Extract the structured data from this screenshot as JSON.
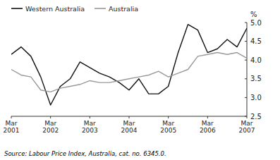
{
  "chart_data": {
    "type": "line",
    "y_label": "%",
    "annotations": [
      "Source: Labour Price Index, Australia, cat. no. 6345.0."
    ],
    "categories": [
      "Mar\n2001",
      null,
      null,
      null,
      "Mar\n2002",
      null,
      null,
      null,
      "Mar\n2003",
      null,
      null,
      null,
      "Mar\n2004",
      null,
      null,
      null,
      "Mar\n2005",
      null,
      null,
      null,
      "Mar\n2006",
      null,
      null,
      null,
      "Mar\n2007"
    ],
    "series": [
      {
        "name": "Western Australia",
        "color": "#111111",
        "values": [
          4.15,
          4.35,
          4.1,
          3.55,
          2.8,
          3.3,
          3.5,
          3.95,
          3.8,
          3.65,
          3.55,
          3.4,
          3.2,
          3.5,
          3.1,
          3.1,
          3.3,
          4.2,
          4.95,
          4.8,
          4.2,
          4.3,
          4.55,
          4.35,
          4.85
        ]
      },
      {
        "name": "Australia",
        "color": "#999999",
        "values": [
          3.75,
          3.6,
          3.55,
          3.2,
          3.15,
          3.25,
          3.3,
          3.35,
          3.45,
          3.4,
          3.4,
          3.45,
          3.5,
          3.55,
          3.6,
          3.7,
          3.55,
          3.65,
          3.75,
          4.1,
          4.15,
          4.2,
          4.15,
          4.2,
          4.05
        ]
      }
    ],
    "ylim": [
      2.5,
      5.0
    ],
    "yticks": [
      2.5,
      {
        "value": 3,
        "label": "3.0"
      },
      3.5,
      {
        "value": 4,
        "label": "4.0"
      },
      4.5,
      {
        "value": 5,
        "label": "5.0"
      }
    ],
    "grid": false,
    "legend": "upper left"
  }
}
